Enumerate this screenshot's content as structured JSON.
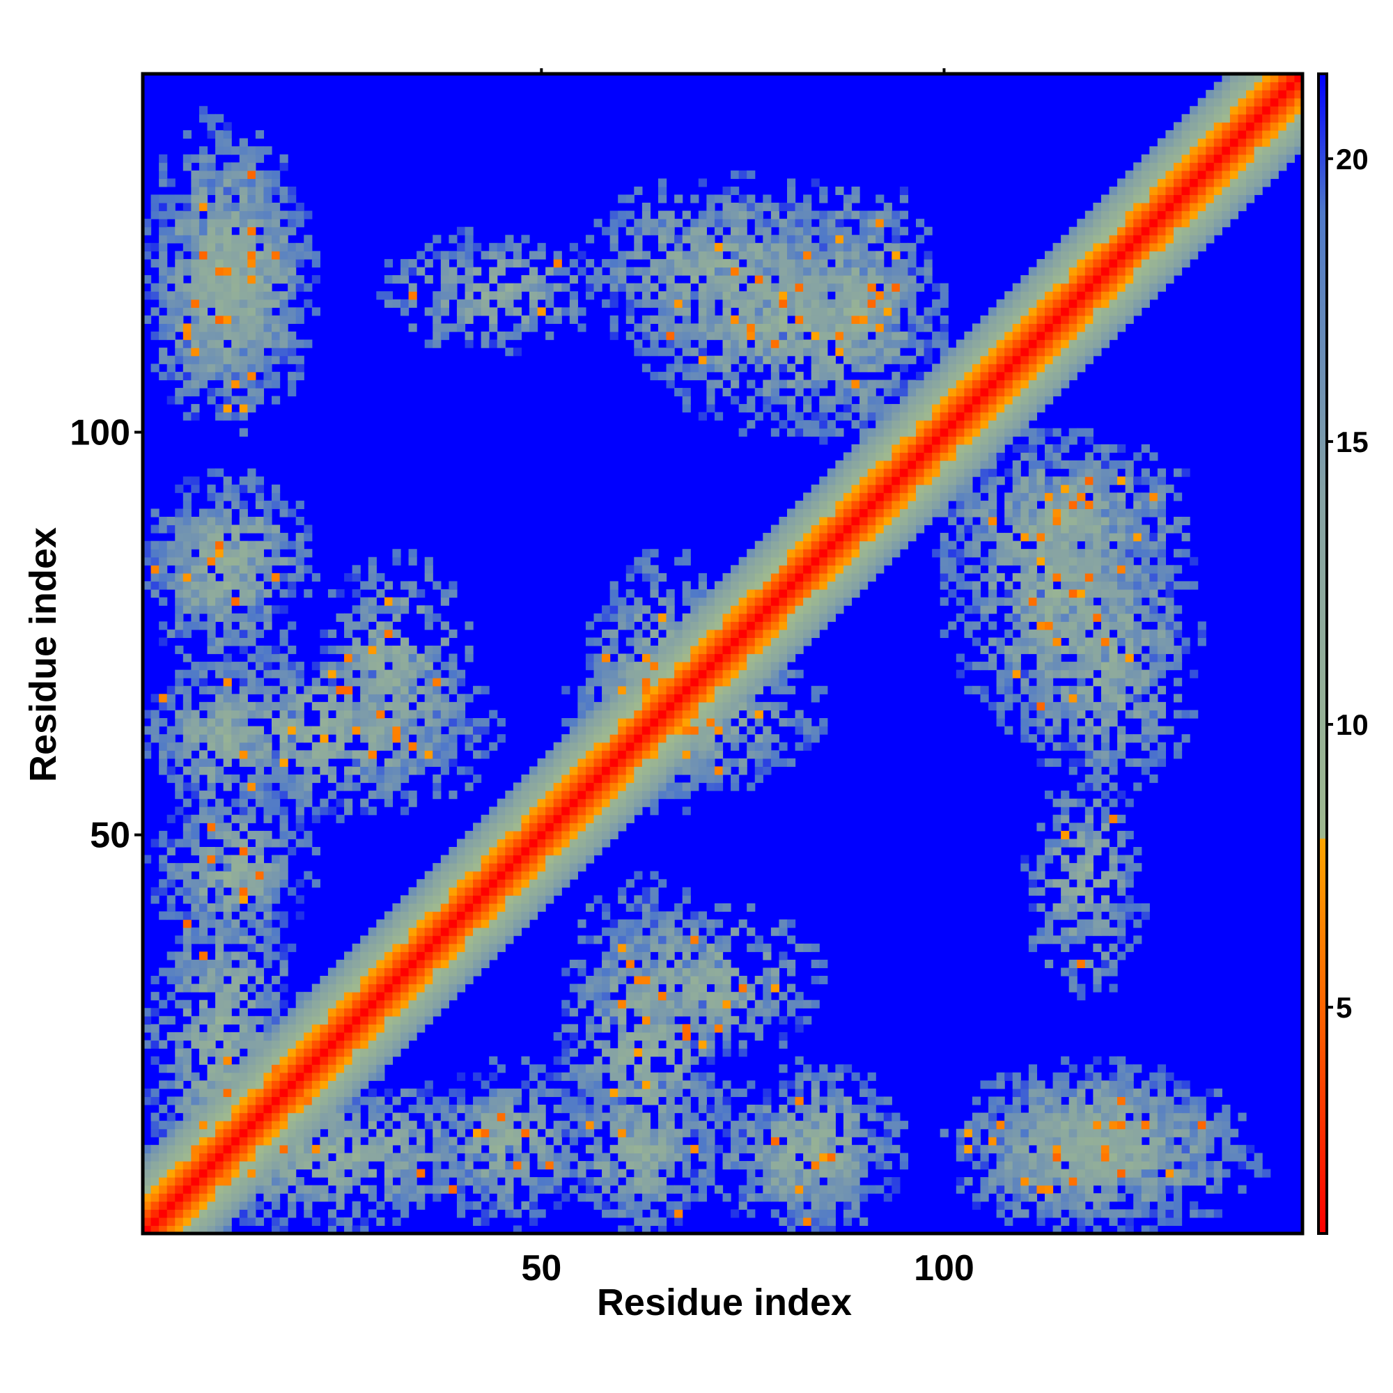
{
  "chart_data": {
    "type": "heatmap",
    "title": "",
    "xlabel": "Residue index",
    "ylabel": "Residue index",
    "x_range": [
      1,
      144
    ],
    "y_range": [
      1,
      144
    ],
    "x_ticks": [
      50,
      100
    ],
    "y_ticks": [
      50,
      100
    ],
    "colorbar": {
      "range": [
        1,
        21.5
      ],
      "ticks": [
        5,
        10,
        15,
        20
      ],
      "stops": [
        {
          "value": 1,
          "color": "#ff0000"
        },
        {
          "value": 4.5,
          "color": "#ff5a00"
        },
        {
          "value": 8,
          "color": "#ffa500"
        },
        {
          "value": 8.01,
          "color": "#9fb98f"
        },
        {
          "value": 14,
          "color": "#86a3a4"
        },
        {
          "value": 19,
          "color": "#4f79c9"
        },
        {
          "value": 21.5,
          "color": "#0000ff"
        }
      ]
    },
    "background_color": "#0000ff",
    "structure": {
      "diagonal_band_halfwidth": 9,
      "contact_clusters": [
        {
          "i_range": [
            1,
            20
          ],
          "j_range": [
            100,
            132
          ]
        },
        {
          "i_range": [
            1,
            20
          ],
          "j_range": [
            70,
            93
          ]
        },
        {
          "i_range": [
            1,
            20
          ],
          "j_range": [
            52,
            72
          ]
        },
        {
          "i_range": [
            1,
            20
          ],
          "j_range": [
            1,
            48
          ]
        },
        {
          "i_range": [
            22,
            42
          ],
          "j_range": [
            55,
            85
          ]
        },
        {
          "i_range": [
            36,
            55
          ],
          "j_range": [
            1,
            22
          ]
        },
        {
          "i_range": [
            52,
            73
          ],
          "j_range": [
            1,
            45
          ]
        },
        {
          "i_range": [
            55,
            75
          ],
          "j_range": [
            53,
            85
          ]
        },
        {
          "i_range": [
            55,
            90
          ],
          "j_range": [
            108,
            132
          ]
        },
        {
          "i_range": [
            75,
            95
          ],
          "j_range": [
            1,
            22
          ]
        },
        {
          "i_range": [
            78,
            100
          ],
          "j_range": [
            98,
            132
          ]
        },
        {
          "i_range": [
            100,
            128
          ],
          "j_range": [
            62,
            100
          ]
        },
        {
          "i_range": [
            102,
            135
          ],
          "j_range": [
            5,
            22
          ]
        },
        {
          "i_range": [
            102,
            140
          ],
          "j_range": [
            1,
            20
          ]
        },
        {
          "i_range": [
            110,
            125
          ],
          "j_range": [
            30,
            58
          ]
        }
      ]
    }
  }
}
